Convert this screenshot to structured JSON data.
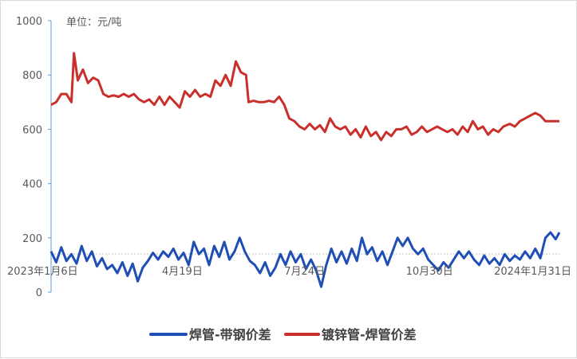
{
  "chart_data": {
    "type": "line",
    "unit_label": "单位：元/吨",
    "ylim": [
      0,
      1000
    ],
    "yticks": [
      0,
      200,
      400,
      600,
      800,
      1000
    ],
    "xlim": [
      "2023-01-06",
      "2024-02-09"
    ],
    "xticks": [
      {
        "date": "2023-01-06",
        "label": "2023年1月6日"
      },
      {
        "date": "2023-04-19",
        "label": "4月19日"
      },
      {
        "date": "2023-07-24",
        "label": "7月24日"
      },
      {
        "date": "2023-10-30",
        "label": "10月30日"
      },
      {
        "date": "2024-01-31",
        "label": "2024年1月31日"
      }
    ],
    "grid": false,
    "legend_position": "bottom",
    "series": [
      {
        "name": "焊管-带钢价差",
        "color": "#1F4FB4",
        "points": [
          [
            "2023-01-06",
            150
          ],
          [
            "2023-01-10",
            110
          ],
          [
            "2023-01-14",
            165
          ],
          [
            "2023-01-18",
            115
          ],
          [
            "2023-01-22",
            140
          ],
          [
            "2023-01-26",
            105
          ],
          [
            "2023-01-30",
            170
          ],
          [
            "2023-02-03",
            115
          ],
          [
            "2023-02-07",
            150
          ],
          [
            "2023-02-11",
            95
          ],
          [
            "2023-02-15",
            125
          ],
          [
            "2023-02-19",
            85
          ],
          [
            "2023-02-23",
            100
          ],
          [
            "2023-02-27",
            70
          ],
          [
            "2023-03-03",
            110
          ],
          [
            "2023-03-07",
            60
          ],
          [
            "2023-03-11",
            105
          ],
          [
            "2023-03-15",
            40
          ],
          [
            "2023-03-19",
            90
          ],
          [
            "2023-03-23",
            115
          ],
          [
            "2023-03-27",
            145
          ],
          [
            "2023-03-31",
            120
          ],
          [
            "2023-04-04",
            150
          ],
          [
            "2023-04-08",
            130
          ],
          [
            "2023-04-12",
            160
          ],
          [
            "2023-04-16",
            120
          ],
          [
            "2023-04-20",
            145
          ],
          [
            "2023-04-24",
            100
          ],
          [
            "2023-04-28",
            185
          ],
          [
            "2023-05-02",
            140
          ],
          [
            "2023-05-06",
            160
          ],
          [
            "2023-05-10",
            100
          ],
          [
            "2023-05-14",
            170
          ],
          [
            "2023-05-18",
            130
          ],
          [
            "2023-05-22",
            185
          ],
          [
            "2023-05-26",
            120
          ],
          [
            "2023-05-30",
            150
          ],
          [
            "2023-06-03",
            200
          ],
          [
            "2023-06-07",
            150
          ],
          [
            "2023-06-11",
            115
          ],
          [
            "2023-06-15",
            100
          ],
          [
            "2023-06-19",
            70
          ],
          [
            "2023-06-23",
            110
          ],
          [
            "2023-06-27",
            60
          ],
          [
            "2023-07-01",
            90
          ],
          [
            "2023-07-05",
            140
          ],
          [
            "2023-07-09",
            100
          ],
          [
            "2023-07-13",
            150
          ],
          [
            "2023-07-17",
            110
          ],
          [
            "2023-07-21",
            140
          ],
          [
            "2023-07-25",
            85
          ],
          [
            "2023-07-29",
            120
          ],
          [
            "2023-08-02",
            80
          ],
          [
            "2023-08-06",
            20
          ],
          [
            "2023-08-10",
            100
          ],
          [
            "2023-08-14",
            160
          ],
          [
            "2023-08-18",
            110
          ],
          [
            "2023-08-22",
            150
          ],
          [
            "2023-08-26",
            105
          ],
          [
            "2023-08-30",
            160
          ],
          [
            "2023-09-03",
            115
          ],
          [
            "2023-09-07",
            200
          ],
          [
            "2023-09-11",
            140
          ],
          [
            "2023-09-15",
            165
          ],
          [
            "2023-09-19",
            115
          ],
          [
            "2023-09-23",
            150
          ],
          [
            "2023-09-27",
            100
          ],
          [
            "2023-10-01",
            150
          ],
          [
            "2023-10-05",
            200
          ],
          [
            "2023-10-09",
            170
          ],
          [
            "2023-10-13",
            200
          ],
          [
            "2023-10-17",
            160
          ],
          [
            "2023-10-21",
            140
          ],
          [
            "2023-10-25",
            160
          ],
          [
            "2023-10-29",
            120
          ],
          [
            "2023-11-02",
            100
          ],
          [
            "2023-11-06",
            80
          ],
          [
            "2023-11-10",
            110
          ],
          [
            "2023-11-14",
            90
          ],
          [
            "2023-11-18",
            120
          ],
          [
            "2023-11-22",
            150
          ],
          [
            "2023-11-26",
            125
          ],
          [
            "2023-11-30",
            150
          ],
          [
            "2023-12-04",
            120
          ],
          [
            "2023-12-08",
            100
          ],
          [
            "2023-12-12",
            135
          ],
          [
            "2023-12-16",
            105
          ],
          [
            "2023-12-20",
            125
          ],
          [
            "2023-12-24",
            100
          ],
          [
            "2023-12-28",
            140
          ],
          [
            "2024-01-01",
            115
          ],
          [
            "2024-01-05",
            135
          ],
          [
            "2024-01-09",
            120
          ],
          [
            "2024-01-13",
            150
          ],
          [
            "2024-01-17",
            125
          ],
          [
            "2024-01-21",
            160
          ],
          [
            "2024-01-25",
            125
          ],
          [
            "2024-01-29",
            200
          ],
          [
            "2024-02-02",
            220
          ],
          [
            "2024-02-06",
            195
          ],
          [
            "2024-02-09",
            220
          ]
        ]
      },
      {
        "name": "镀锌管-焊管价差",
        "color": "#C9302C",
        "points": [
          [
            "2023-01-06",
            690
          ],
          [
            "2023-01-10",
            700
          ],
          [
            "2023-01-14",
            730
          ],
          [
            "2023-01-18",
            730
          ],
          [
            "2023-01-22",
            700
          ],
          [
            "2023-01-24",
            880
          ],
          [
            "2023-01-27",
            780
          ],
          [
            "2023-01-31",
            820
          ],
          [
            "2023-02-04",
            770
          ],
          [
            "2023-02-08",
            790
          ],
          [
            "2023-02-12",
            780
          ],
          [
            "2023-02-16",
            730
          ],
          [
            "2023-02-20",
            720
          ],
          [
            "2023-02-24",
            725
          ],
          [
            "2023-02-28",
            720
          ],
          [
            "2023-03-04",
            730
          ],
          [
            "2023-03-08",
            720
          ],
          [
            "2023-03-12",
            730
          ],
          [
            "2023-03-16",
            710
          ],
          [
            "2023-03-20",
            700
          ],
          [
            "2023-03-24",
            710
          ],
          [
            "2023-03-28",
            690
          ],
          [
            "2023-04-01",
            720
          ],
          [
            "2023-04-05",
            690
          ],
          [
            "2023-04-09",
            720
          ],
          [
            "2023-04-13",
            700
          ],
          [
            "2023-04-17",
            680
          ],
          [
            "2023-04-21",
            740
          ],
          [
            "2023-04-25",
            720
          ],
          [
            "2023-04-29",
            745
          ],
          [
            "2023-05-03",
            720
          ],
          [
            "2023-05-07",
            730
          ],
          [
            "2023-05-11",
            720
          ],
          [
            "2023-05-15",
            780
          ],
          [
            "2023-05-19",
            760
          ],
          [
            "2023-05-23",
            800
          ],
          [
            "2023-05-27",
            760
          ],
          [
            "2023-05-31",
            850
          ],
          [
            "2023-06-04",
            810
          ],
          [
            "2023-06-08",
            800
          ],
          [
            "2023-06-10",
            700
          ],
          [
            "2023-06-14",
            705
          ],
          [
            "2023-06-18",
            700
          ],
          [
            "2023-06-22",
            700
          ],
          [
            "2023-06-26",
            705
          ],
          [
            "2023-06-30",
            700
          ],
          [
            "2023-07-04",
            720
          ],
          [
            "2023-07-08",
            690
          ],
          [
            "2023-07-12",
            640
          ],
          [
            "2023-07-16",
            630
          ],
          [
            "2023-07-20",
            610
          ],
          [
            "2023-07-24",
            600
          ],
          [
            "2023-07-28",
            620
          ],
          [
            "2023-08-01",
            600
          ],
          [
            "2023-08-05",
            615
          ],
          [
            "2023-08-09",
            590
          ],
          [
            "2023-08-13",
            640
          ],
          [
            "2023-08-17",
            610
          ],
          [
            "2023-08-21",
            600
          ],
          [
            "2023-08-25",
            610
          ],
          [
            "2023-08-29",
            580
          ],
          [
            "2023-09-02",
            600
          ],
          [
            "2023-09-06",
            570
          ],
          [
            "2023-09-10",
            610
          ],
          [
            "2023-09-14",
            575
          ],
          [
            "2023-09-18",
            590
          ],
          [
            "2023-09-22",
            560
          ],
          [
            "2023-09-26",
            590
          ],
          [
            "2023-09-30",
            575
          ],
          [
            "2023-10-04",
            600
          ],
          [
            "2023-10-08",
            600
          ],
          [
            "2023-10-12",
            610
          ],
          [
            "2023-10-16",
            580
          ],
          [
            "2023-10-20",
            590
          ],
          [
            "2023-10-24",
            610
          ],
          [
            "2023-10-28",
            590
          ],
          [
            "2023-11-01",
            600
          ],
          [
            "2023-11-05",
            610
          ],
          [
            "2023-11-09",
            600
          ],
          [
            "2023-11-13",
            590
          ],
          [
            "2023-11-17",
            600
          ],
          [
            "2023-11-21",
            580
          ],
          [
            "2023-11-25",
            610
          ],
          [
            "2023-11-29",
            590
          ],
          [
            "2023-12-03",
            630
          ],
          [
            "2023-12-07",
            600
          ],
          [
            "2023-12-11",
            610
          ],
          [
            "2023-12-15",
            580
          ],
          [
            "2023-12-19",
            600
          ],
          [
            "2023-12-23",
            590
          ],
          [
            "2023-12-27",
            610
          ],
          [
            "2024-01-01",
            620
          ],
          [
            "2024-01-05",
            610
          ],
          [
            "2024-01-09",
            630
          ],
          [
            "2024-01-13",
            640
          ],
          [
            "2024-01-17",
            650
          ],
          [
            "2024-01-21",
            660
          ],
          [
            "2024-01-25",
            650
          ],
          [
            "2024-01-29",
            630
          ],
          [
            "2024-02-02",
            630
          ],
          [
            "2024-02-09",
            630
          ]
        ]
      }
    ]
  }
}
